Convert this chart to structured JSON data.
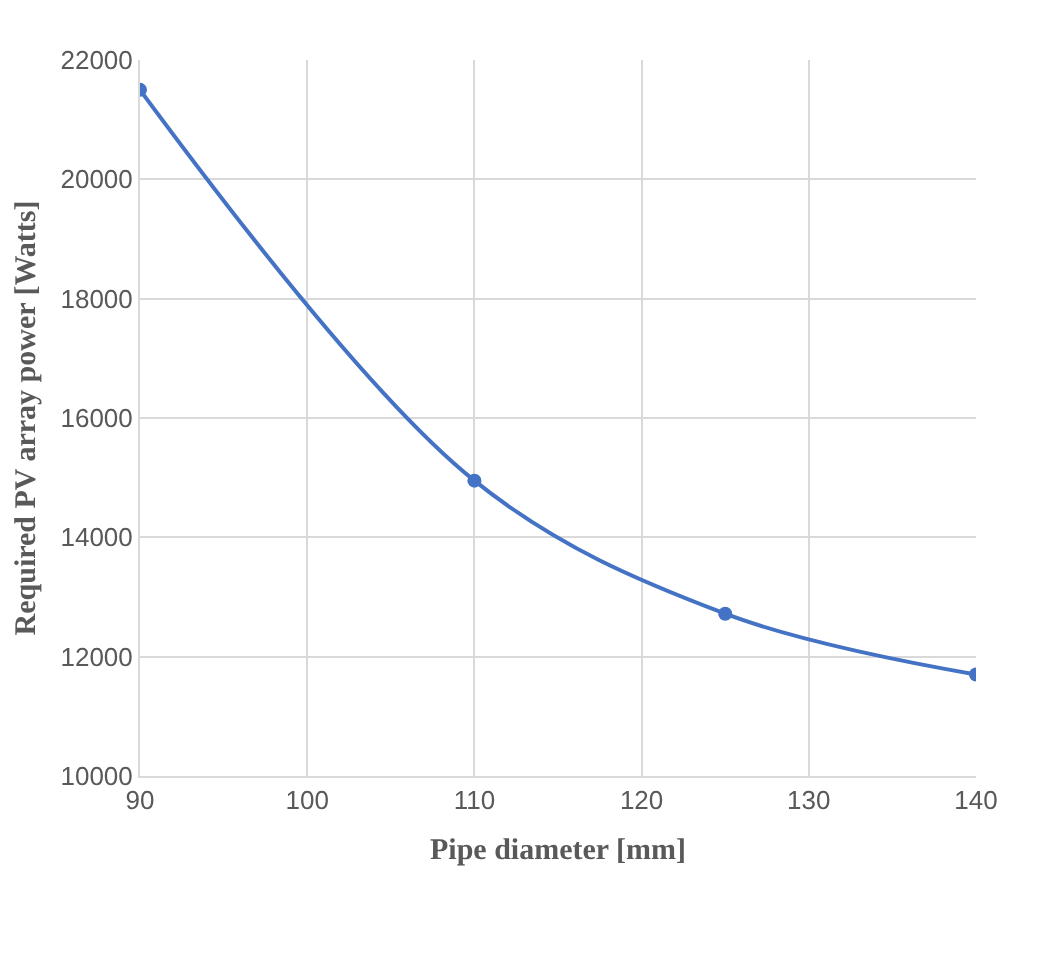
{
  "chart_data": {
    "type": "line",
    "xlabel": "Pipe diameter [mm]",
    "ylabel": "Required PV array power [Watts]",
    "x": [
      90,
      110,
      125,
      140
    ],
    "series": [
      {
        "color": "#4472c4",
        "values": [
          21500,
          14950,
          12720,
          11700
        ]
      }
    ],
    "xlim": [
      90,
      140
    ],
    "xticks": [
      90,
      100,
      110,
      120,
      130,
      140
    ],
    "ylim": [
      10000,
      22000
    ],
    "yticks": [
      10000,
      12000,
      14000,
      16000,
      18000,
      20000,
      22000
    ],
    "grid": true,
    "marker": "circle",
    "line_style": "solid"
  }
}
